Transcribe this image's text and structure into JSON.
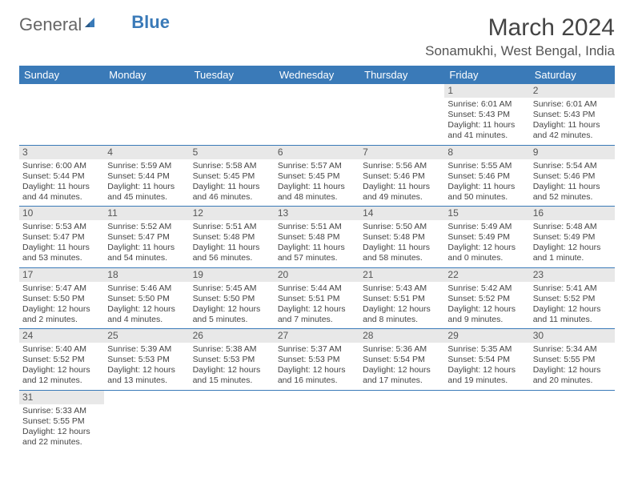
{
  "logo": {
    "text1": "General",
    "text2": "Blue"
  },
  "title": "March 2024",
  "location": "Sonamukhi, West Bengal, India",
  "colors": {
    "header_bg": "#3a7ab8",
    "header_text": "#ffffff",
    "daynum_bg": "#e8e8e8",
    "border": "#3a7ab8",
    "body_text": "#444444"
  },
  "weekdays": [
    "Sunday",
    "Monday",
    "Tuesday",
    "Wednesday",
    "Thursday",
    "Friday",
    "Saturday"
  ],
  "weeks": [
    [
      null,
      null,
      null,
      null,
      null,
      {
        "d": "1",
        "sr": "Sunrise: 6:01 AM",
        "ss": "Sunset: 5:43 PM",
        "dl1": "Daylight: 11 hours",
        "dl2": "and 41 minutes."
      },
      {
        "d": "2",
        "sr": "Sunrise: 6:01 AM",
        "ss": "Sunset: 5:43 PM",
        "dl1": "Daylight: 11 hours",
        "dl2": "and 42 minutes."
      }
    ],
    [
      {
        "d": "3",
        "sr": "Sunrise: 6:00 AM",
        "ss": "Sunset: 5:44 PM",
        "dl1": "Daylight: 11 hours",
        "dl2": "and 44 minutes."
      },
      {
        "d": "4",
        "sr": "Sunrise: 5:59 AM",
        "ss": "Sunset: 5:44 PM",
        "dl1": "Daylight: 11 hours",
        "dl2": "and 45 minutes."
      },
      {
        "d": "5",
        "sr": "Sunrise: 5:58 AM",
        "ss": "Sunset: 5:45 PM",
        "dl1": "Daylight: 11 hours",
        "dl2": "and 46 minutes."
      },
      {
        "d": "6",
        "sr": "Sunrise: 5:57 AM",
        "ss": "Sunset: 5:45 PM",
        "dl1": "Daylight: 11 hours",
        "dl2": "and 48 minutes."
      },
      {
        "d": "7",
        "sr": "Sunrise: 5:56 AM",
        "ss": "Sunset: 5:46 PM",
        "dl1": "Daylight: 11 hours",
        "dl2": "and 49 minutes."
      },
      {
        "d": "8",
        "sr": "Sunrise: 5:55 AM",
        "ss": "Sunset: 5:46 PM",
        "dl1": "Daylight: 11 hours",
        "dl2": "and 50 minutes."
      },
      {
        "d": "9",
        "sr": "Sunrise: 5:54 AM",
        "ss": "Sunset: 5:46 PM",
        "dl1": "Daylight: 11 hours",
        "dl2": "and 52 minutes."
      }
    ],
    [
      {
        "d": "10",
        "sr": "Sunrise: 5:53 AM",
        "ss": "Sunset: 5:47 PM",
        "dl1": "Daylight: 11 hours",
        "dl2": "and 53 minutes."
      },
      {
        "d": "11",
        "sr": "Sunrise: 5:52 AM",
        "ss": "Sunset: 5:47 PM",
        "dl1": "Daylight: 11 hours",
        "dl2": "and 54 minutes."
      },
      {
        "d": "12",
        "sr": "Sunrise: 5:51 AM",
        "ss": "Sunset: 5:48 PM",
        "dl1": "Daylight: 11 hours",
        "dl2": "and 56 minutes."
      },
      {
        "d": "13",
        "sr": "Sunrise: 5:51 AM",
        "ss": "Sunset: 5:48 PM",
        "dl1": "Daylight: 11 hours",
        "dl2": "and 57 minutes."
      },
      {
        "d": "14",
        "sr": "Sunrise: 5:50 AM",
        "ss": "Sunset: 5:48 PM",
        "dl1": "Daylight: 11 hours",
        "dl2": "and 58 minutes."
      },
      {
        "d": "15",
        "sr": "Sunrise: 5:49 AM",
        "ss": "Sunset: 5:49 PM",
        "dl1": "Daylight: 12 hours",
        "dl2": "and 0 minutes."
      },
      {
        "d": "16",
        "sr": "Sunrise: 5:48 AM",
        "ss": "Sunset: 5:49 PM",
        "dl1": "Daylight: 12 hours",
        "dl2": "and 1 minute."
      }
    ],
    [
      {
        "d": "17",
        "sr": "Sunrise: 5:47 AM",
        "ss": "Sunset: 5:50 PM",
        "dl1": "Daylight: 12 hours",
        "dl2": "and 2 minutes."
      },
      {
        "d": "18",
        "sr": "Sunrise: 5:46 AM",
        "ss": "Sunset: 5:50 PM",
        "dl1": "Daylight: 12 hours",
        "dl2": "and 4 minutes."
      },
      {
        "d": "19",
        "sr": "Sunrise: 5:45 AM",
        "ss": "Sunset: 5:50 PM",
        "dl1": "Daylight: 12 hours",
        "dl2": "and 5 minutes."
      },
      {
        "d": "20",
        "sr": "Sunrise: 5:44 AM",
        "ss": "Sunset: 5:51 PM",
        "dl1": "Daylight: 12 hours",
        "dl2": "and 7 minutes."
      },
      {
        "d": "21",
        "sr": "Sunrise: 5:43 AM",
        "ss": "Sunset: 5:51 PM",
        "dl1": "Daylight: 12 hours",
        "dl2": "and 8 minutes."
      },
      {
        "d": "22",
        "sr": "Sunrise: 5:42 AM",
        "ss": "Sunset: 5:52 PM",
        "dl1": "Daylight: 12 hours",
        "dl2": "and 9 minutes."
      },
      {
        "d": "23",
        "sr": "Sunrise: 5:41 AM",
        "ss": "Sunset: 5:52 PM",
        "dl1": "Daylight: 12 hours",
        "dl2": "and 11 minutes."
      }
    ],
    [
      {
        "d": "24",
        "sr": "Sunrise: 5:40 AM",
        "ss": "Sunset: 5:52 PM",
        "dl1": "Daylight: 12 hours",
        "dl2": "and 12 minutes."
      },
      {
        "d": "25",
        "sr": "Sunrise: 5:39 AM",
        "ss": "Sunset: 5:53 PM",
        "dl1": "Daylight: 12 hours",
        "dl2": "and 13 minutes."
      },
      {
        "d": "26",
        "sr": "Sunrise: 5:38 AM",
        "ss": "Sunset: 5:53 PM",
        "dl1": "Daylight: 12 hours",
        "dl2": "and 15 minutes."
      },
      {
        "d": "27",
        "sr": "Sunrise: 5:37 AM",
        "ss": "Sunset: 5:53 PM",
        "dl1": "Daylight: 12 hours",
        "dl2": "and 16 minutes."
      },
      {
        "d": "28",
        "sr": "Sunrise: 5:36 AM",
        "ss": "Sunset: 5:54 PM",
        "dl1": "Daylight: 12 hours",
        "dl2": "and 17 minutes."
      },
      {
        "d": "29",
        "sr": "Sunrise: 5:35 AM",
        "ss": "Sunset: 5:54 PM",
        "dl1": "Daylight: 12 hours",
        "dl2": "and 19 minutes."
      },
      {
        "d": "30",
        "sr": "Sunrise: 5:34 AM",
        "ss": "Sunset: 5:55 PM",
        "dl1": "Daylight: 12 hours",
        "dl2": "and 20 minutes."
      }
    ],
    [
      {
        "d": "31",
        "sr": "Sunrise: 5:33 AM",
        "ss": "Sunset: 5:55 PM",
        "dl1": "Daylight: 12 hours",
        "dl2": "and 22 minutes."
      },
      null,
      null,
      null,
      null,
      null,
      null
    ]
  ]
}
